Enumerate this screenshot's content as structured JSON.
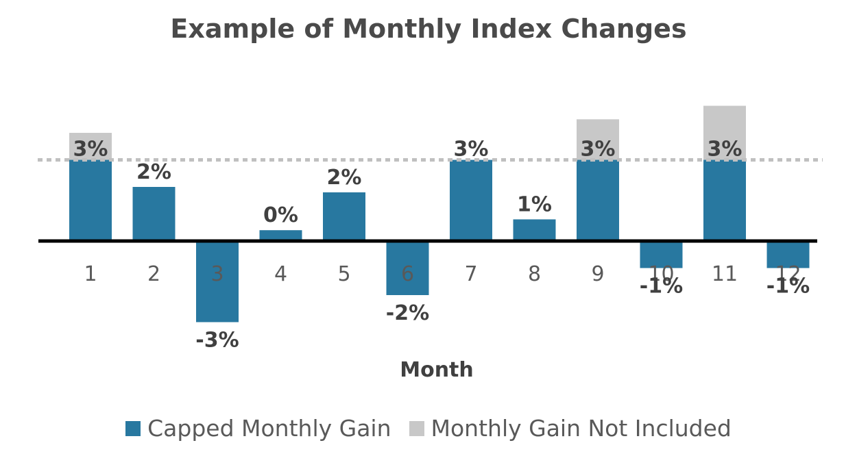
{
  "chart_data": {
    "type": "bar",
    "title": "Example of Monthly Index Changes",
    "xlabel": "Month",
    "ylabel": "",
    "categories": [
      "1",
      "2",
      "3",
      "4",
      "5",
      "6",
      "7",
      "8",
      "9",
      "10",
      "11",
      "12"
    ],
    "cap": 3,
    "ylim": [
      -4,
      5
    ],
    "grid": false,
    "legend_position": "bottom",
    "series": [
      {
        "name": "Capped Monthly Gain",
        "color": "#2878a0",
        "values": [
          3,
          2,
          -3,
          0.4,
          1.8,
          -2,
          3,
          0.8,
          3,
          -1,
          3,
          -1
        ]
      },
      {
        "name": "Monthly Gain Not Included",
        "color": "#c8c8c8",
        "values": [
          1,
          0,
          0,
          0,
          0,
          0,
          0,
          0,
          1.5,
          0,
          2,
          0
        ]
      }
    ],
    "data_labels": [
      "3%",
      "2%",
      "-3%",
      "0%",
      "2%",
      "-2%",
      "3%",
      "1%",
      "3%",
      "-1%",
      "3%",
      "-1%"
    ]
  }
}
